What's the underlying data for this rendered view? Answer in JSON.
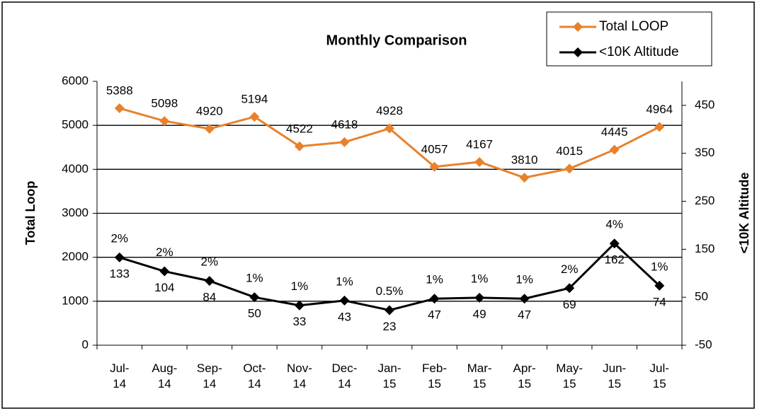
{
  "chart_data": {
    "type": "line",
    "title": "Monthly Comparison",
    "ylabel": "Total Loop",
    "y2label": "<10K Altitude",
    "categories": [
      "Jul-14",
      "Aug-14",
      "Sep-14",
      "Oct-14",
      "Nov-14",
      "Dec-14",
      "Jan-15",
      "Feb-15",
      "Mar-15",
      "Apr-15",
      "May-15",
      "Jun-15",
      "Jul-15"
    ],
    "series": [
      {
        "name": "Total LOOP",
        "color": "#e8812c",
        "values": [
          5388,
          5098,
          4920,
          5194,
          4522,
          4618,
          4928,
          4057,
          4167,
          3810,
          4015,
          4445,
          4964
        ]
      },
      {
        "name": "<10K Altitude",
        "color": "#000000",
        "axis": "y2",
        "values": [
          133,
          104,
          84,
          50,
          33,
          43,
          23,
          47,
          49,
          47,
          69,
          162,
          74
        ],
        "percent_labels": [
          "2%",
          "2%",
          "2%",
          "1%",
          "1%",
          "1%",
          "0.5%",
          "1%",
          "1%",
          "1%",
          "2%",
          "4%",
          "1%"
        ]
      }
    ],
    "ylim": [
      0,
      6000
    ],
    "yticks": [
      0,
      1000,
      2000,
      3000,
      4000,
      5000,
      6000
    ],
    "y2lim": [
      -50,
      500
    ],
    "y2ticks": [
      -50,
      50,
      150,
      250,
      350,
      450
    ],
    "grid": true,
    "legend": "top-right"
  }
}
